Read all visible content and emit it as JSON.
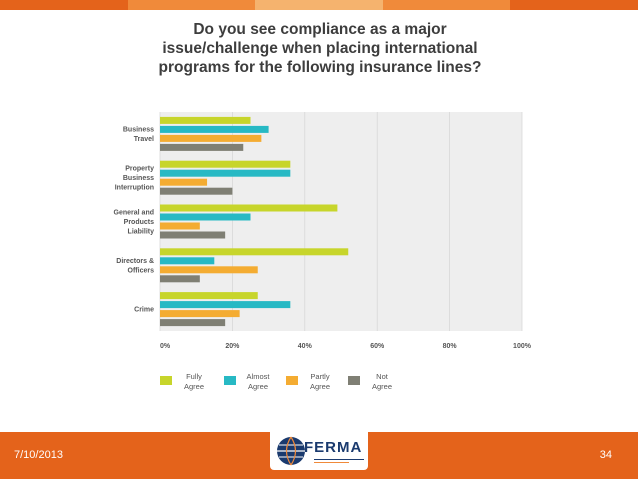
{
  "title_lines": [
    "Do you see compliance as a major",
    "issue/challenge when placing international",
    "programs for the following insurance lines?"
  ],
  "chart_data": {
    "type": "bar",
    "orientation": "horizontal",
    "categories": [
      [
        "Business",
        "Travel"
      ],
      [
        "Property",
        "Business",
        "Interruption"
      ],
      [
        "General and",
        "Products",
        "Liability"
      ],
      [
        "Directors &",
        "Officers"
      ],
      [
        "Crime"
      ]
    ],
    "series": [
      {
        "name": "Fully\nAgree",
        "color": "#c7d52b",
        "values": [
          25,
          36,
          49,
          52,
          27
        ]
      },
      {
        "name": "Almost\nAgree",
        "color": "#27b9c4",
        "values": [
          30,
          36,
          25,
          15,
          36
        ]
      },
      {
        "name": "Partly\nAgree",
        "color": "#f4ac32",
        "values": [
          28,
          13,
          11,
          27,
          22
        ]
      },
      {
        "name": "Not\nAgree",
        "color": "#7f7f74",
        "values": [
          23,
          20,
          18,
          11,
          18
        ]
      }
    ],
    "x_ticks": [
      "0%",
      "20%",
      "40%",
      "60%",
      "80%",
      "100%"
    ],
    "xlim": [
      0,
      100
    ],
    "grid": true,
    "legend_position": "bottom",
    "background": "#eeeeee"
  },
  "footer": {
    "date": "7/10/2013",
    "page": "34",
    "logo_text": "FERMA"
  },
  "colors": {
    "footer": "#e4631b",
    "stripe": [
      "#e4631b",
      "#f08a3a",
      "#f5b36e",
      "#f08a3a",
      "#e4631b"
    ]
  }
}
